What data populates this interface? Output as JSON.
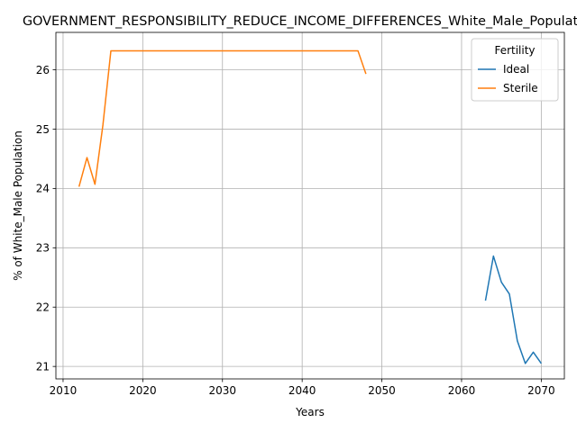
{
  "chart_data": {
    "type": "line",
    "title": "GOVERNMENT_RESPONSIBILITY_REDUCE_INCOME_DIFFERENCES_White_Male_Population",
    "xlabel": "Years",
    "ylabel": "% of White_Male Population",
    "xlim": [
      2009.1,
      2072.9
    ],
    "ylim": [
      20.79,
      26.63
    ],
    "xticks": [
      2010,
      2020,
      2030,
      2040,
      2050,
      2060,
      2070
    ],
    "yticks": [
      21,
      22,
      23,
      24,
      25,
      26
    ],
    "grid": true,
    "legend": {
      "title": "Fertility",
      "placement": "top-right"
    },
    "series": [
      {
        "name": "Ideal",
        "color": "#1f77b4",
        "x": [
          2063,
          2064,
          2065,
          2066,
          2067,
          2068,
          2069,
          2070
        ],
        "y": [
          22.11,
          22.86,
          22.42,
          22.22,
          21.43,
          21.05,
          21.24,
          21.05
        ]
      },
      {
        "name": "Sterile",
        "color": "#ff7f0e",
        "x": [
          2012,
          2013,
          2014,
          2015,
          2016,
          2017,
          2020,
          2025,
          2030,
          2035,
          2040,
          2045,
          2046,
          2047,
          2048
        ],
        "y": [
          24.03,
          24.52,
          24.07,
          25.07,
          26.32,
          26.32,
          26.32,
          26.32,
          26.32,
          26.32,
          26.32,
          26.32,
          26.32,
          26.32,
          25.93
        ]
      }
    ]
  }
}
